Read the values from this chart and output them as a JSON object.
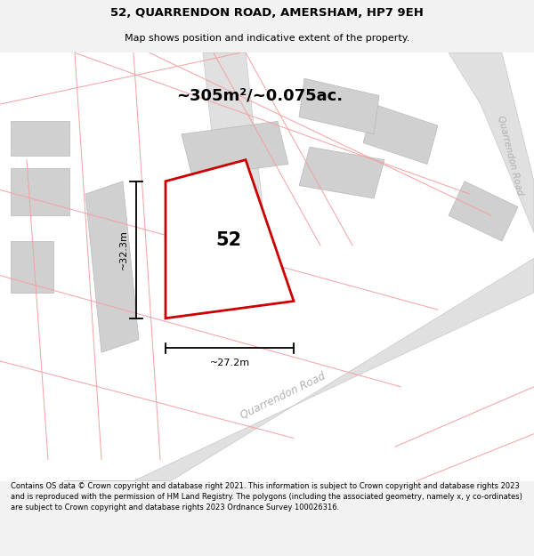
{
  "title": "52, QUARRENDON ROAD, AMERSHAM, HP7 9EH",
  "subtitle": "Map shows position and indicative extent of the property.",
  "area_label": "~305m²/~0.075ac.",
  "number_label": "52",
  "dim_vertical": "~32.3m",
  "dim_horizontal": "~27.2m",
  "road_label": "Quarrendon Road",
  "road_label_side": "Quarrendon Road",
  "footer": "Contains OS data © Crown copyright and database right 2021. This information is subject to Crown copyright and database rights 2023 and is reproduced with the permission of HM Land Registry. The polygons (including the associated geometry, namely x, y co-ordinates) are subject to Crown copyright and database rights 2023 Ordnance Survey 100026316.",
  "bg_color": "#f2f2f2",
  "map_bg": "#ffffff",
  "plot_fill": "#ffffff",
  "plot_edge": "#cc0000",
  "road_fill": "#e0e0e0",
  "road_edge": "#c8c8c8",
  "building_fill": "#d0d0d0",
  "building_edge": "#b8b8b8",
  "cadastral_color": "#f5a0a0",
  "text_color": "#000000",
  "road_text_color": "#b0b0b0",
  "dim_line_color": "#000000"
}
